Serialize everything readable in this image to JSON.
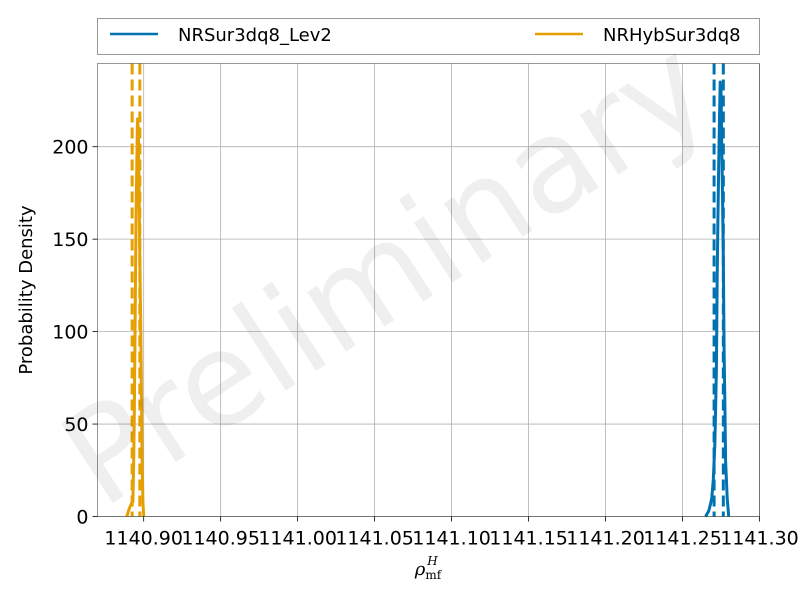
{
  "chart_data": {
    "type": "line",
    "title": "",
    "xlabel_main": "ρ",
    "xlabel_sub": "mf",
    "xlabel_sup": "H",
    "ylabel": "Probability Density",
    "xlim": [
      1140.87,
      1141.3
    ],
    "ylim": [
      0,
      245
    ],
    "x_ticks": [
      1140.9,
      1140.95,
      1141.0,
      1141.05,
      1141.1,
      1141.15,
      1141.2,
      1141.25,
      1141.3
    ],
    "x_tick_labels": [
      "1140.90",
      "1140.95",
      "1141.00",
      "1141.05",
      "1141.10",
      "1141.15",
      "1141.20",
      "1141.25",
      "1141.30"
    ],
    "y_ticks": [
      0,
      50,
      100,
      150,
      200
    ],
    "y_tick_labels": [
      "0",
      "50",
      "100",
      "150",
      "200"
    ],
    "grid": true,
    "legend_position": "top (above plot, 2 columns)",
    "watermark": "Preliminary",
    "series": [
      {
        "name": "NRSur3dq8_Lev2",
        "color": "#0072b2",
        "x": [
          1141.265,
          1141.267,
          1141.268,
          1141.269,
          1141.27,
          1141.271,
          1141.272,
          1141.2725,
          1141.273,
          1141.2735,
          1141.274,
          1141.2745,
          1141.275,
          1141.2755,
          1141.276,
          1141.2765,
          1141.277,
          1141.2775,
          1141.278,
          1141.279,
          1141.28
        ],
        "y": [
          0,
          3,
          6,
          10,
          20,
          40,
          80,
          130,
          160,
          190,
          215,
          235,
          230,
          200,
          170,
          140,
          90,
          60,
          30,
          10,
          0
        ],
        "interval_bounds": [
          1141.2705,
          1141.2765
        ]
      },
      {
        "name": "NRHybSur3dq8",
        "color": "#e69f00",
        "x": [
          1140.889,
          1140.8905,
          1140.892,
          1140.893,
          1140.8935,
          1140.894,
          1140.8945,
          1140.895,
          1140.8955,
          1140.896,
          1140.8965,
          1140.897,
          1140.8975,
          1140.898,
          1140.8985,
          1140.899,
          1140.8995,
          1140.9
        ],
        "y": [
          0,
          4,
          7,
          8,
          30,
          60,
          110,
          160,
          190,
          215,
          210,
          175,
          140,
          110,
          70,
          30,
          8,
          0
        ],
        "interval_bounds": [
          1140.8925,
          1140.8975
        ]
      }
    ]
  }
}
